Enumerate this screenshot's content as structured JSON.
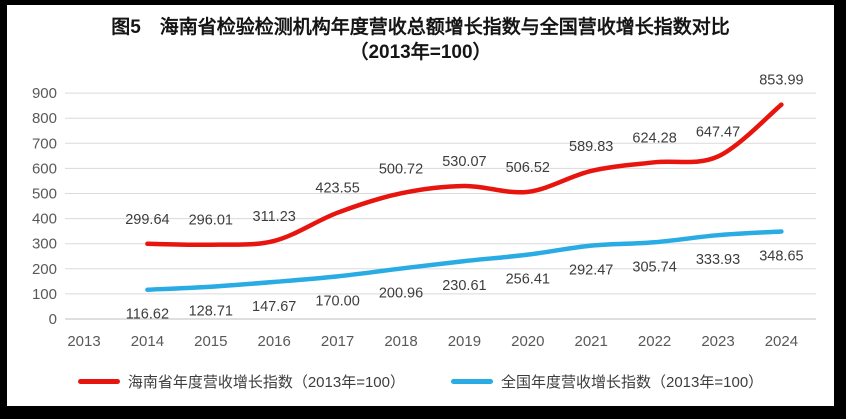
{
  "title": {
    "line1": "图5　海南省检验检测机构年度营收总额增长指数与全国营收增长指数对比",
    "line2": "（2013年=100）"
  },
  "chart_data": {
    "type": "line",
    "title": "图5　海南省检验检测机构年度营收总额增长指数与全国营收增长指数对比（2013年=100）",
    "categories": [
      "2013",
      "2014",
      "2015",
      "2016",
      "2017",
      "2018",
      "2019",
      "2020",
      "2021",
      "2022",
      "2023",
      "2024"
    ],
    "series": [
      {
        "name": "海南省年度营收增长指数（2013年=100）",
        "color": "#e8140e",
        "label_position": "above",
        "values": [
          null,
          299.64,
          296.01,
          311.23,
          423.55,
          500.72,
          530.07,
          506.52,
          589.83,
          624.28,
          647.47,
          853.99
        ]
      },
      {
        "name": "全国年度营收增长指数（2013年=100）",
        "color": "#29ace3",
        "label_position": "below",
        "values": [
          null,
          116.62,
          128.71,
          147.67,
          170.0,
          200.96,
          230.61,
          256.41,
          292.47,
          305.74,
          333.93,
          348.65
        ]
      }
    ],
    "xlabel": "",
    "ylabel": "",
    "ylim": [
      0,
      900
    ],
    "ytick_step": 100,
    "yticks": [
      0,
      100,
      200,
      300,
      400,
      500,
      600,
      700,
      800,
      900
    ],
    "grid": true,
    "smooth_lines": true,
    "label_decimals": 2,
    "legend_position": "bottom"
  },
  "colors": {
    "gridline": "#dadada",
    "axis_line": "#bfbfbf",
    "tick_text": "#595959",
    "label_text": "#3d3d3d",
    "frame": "#000000",
    "background": "#ffffff"
  }
}
